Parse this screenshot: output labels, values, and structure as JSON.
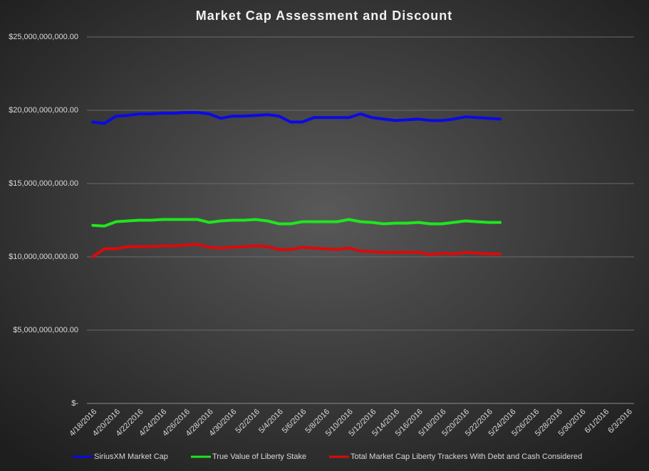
{
  "chart_data": {
    "type": "line",
    "title": "Market Cap Assessment and Discount",
    "categories": [
      "4/18/2016",
      null,
      "4/20/2016",
      null,
      "4/22/2016",
      null,
      "4/24/2016",
      null,
      "4/26/2016",
      null,
      "4/28/2016",
      null,
      "4/30/2016",
      null,
      "5/2/2016",
      null,
      "5/4/2016",
      null,
      "5/6/2016",
      null,
      "5/8/2016",
      null,
      "5/10/2016",
      null,
      "5/12/2016",
      null,
      "5/14/2016",
      null,
      "5/16/2016",
      null,
      "5/18/2016",
      null,
      "5/20/2016",
      null,
      "5/22/2016",
      null,
      "5/24/2016",
      null,
      "5/26/2016",
      null,
      "5/28/2016",
      null,
      "5/30/2016",
      null,
      "6/1/2016",
      null,
      "6/3/2016"
    ],
    "series": [
      {
        "name": "SiriusXM Market Cap",
        "color": "#0a0ae6",
        "values": [
          19200000000,
          19100000000,
          19600000000,
          19650000000,
          19750000000,
          19750000000,
          19800000000,
          19800000000,
          19850000000,
          19850000000,
          19750000000,
          19450000000,
          19600000000,
          19600000000,
          19650000000,
          19700000000,
          19600000000,
          19200000000,
          19200000000,
          19500000000,
          19500000000,
          19500000000,
          19500000000,
          19750000000,
          19500000000,
          19400000000,
          19300000000,
          19350000000,
          19400000000,
          19300000000,
          19300000000,
          19400000000,
          19550000000,
          19500000000,
          19450000000,
          19400000000,
          null,
          null,
          null,
          null,
          null,
          null,
          null,
          null,
          null,
          null,
          null
        ]
      },
      {
        "name": "True Value of Liberty Stake",
        "color": "#1ee61e",
        "values": [
          12150000000,
          12100000000,
          12400000000,
          12450000000,
          12500000000,
          12500000000,
          12550000000,
          12550000000,
          12550000000,
          12550000000,
          12350000000,
          12450000000,
          12500000000,
          12500000000,
          12550000000,
          12450000000,
          12250000000,
          12250000000,
          12400000000,
          12400000000,
          12400000000,
          12400000000,
          12550000000,
          12400000000,
          12350000000,
          12250000000,
          12300000000,
          12300000000,
          12350000000,
          12250000000,
          12250000000,
          12350000000,
          12450000000,
          12400000000,
          12350000000,
          12350000000,
          null,
          null,
          null,
          null,
          null,
          null,
          null,
          null,
          null,
          null,
          null
        ]
      },
      {
        "name": "Total Market Cap Liberty Trackers With Debt and Cash Considered",
        "color": "#dc0a0a",
        "values": [
          10000000000,
          10550000000,
          10550000000,
          10700000000,
          10700000000,
          10700000000,
          10750000000,
          10750000000,
          10800000000,
          10850000000,
          10650000000,
          10600000000,
          10650000000,
          10700000000,
          10750000000,
          10700000000,
          10500000000,
          10500000000,
          10650000000,
          10600000000,
          10550000000,
          10500000000,
          10600000000,
          10400000000,
          10350000000,
          10300000000,
          10300000000,
          10300000000,
          10300000000,
          10150000000,
          10250000000,
          10200000000,
          10300000000,
          10250000000,
          10200000000,
          10200000000,
          null,
          null,
          null,
          null,
          null,
          null,
          null,
          null,
          null,
          null,
          null
        ]
      }
    ],
    "ylim": [
      0,
      25000000000
    ],
    "yticks": [
      {
        "value": 0,
        "label": "$-"
      },
      {
        "value": 5000000000,
        "label": "$5,000,000,000.00"
      },
      {
        "value": 10000000000,
        "label": "$10,000,000,000.00"
      },
      {
        "value": 15000000000,
        "label": "$15,000,000,000.00"
      },
      {
        "value": 20000000000,
        "label": "$20,000,000,000.00"
      },
      {
        "value": 25000000000,
        "label": "$25,000,000,000.00"
      }
    ],
    "grid": true,
    "legend": "bottom"
  }
}
